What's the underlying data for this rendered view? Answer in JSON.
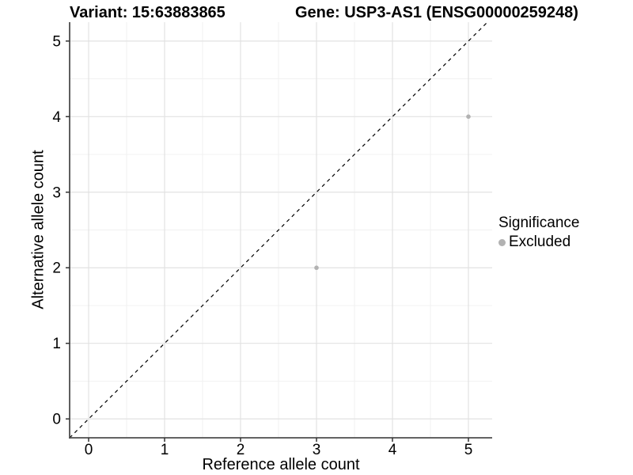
{
  "titles": {
    "left": "Variant: 15:63883865",
    "right": "Gene: USP3-AS1 (ENSG00000259248)"
  },
  "chart_data": {
    "type": "scatter",
    "title_left": "Variant: 15:63883865",
    "title_right": "Gene: USP3-AS1 (ENSG00000259248)",
    "xlabel": "Reference allele count",
    "ylabel": "Alternative allele count",
    "xticks": [
      0,
      1,
      2,
      3,
      4,
      5
    ],
    "yticks": [
      0,
      1,
      2,
      3,
      4,
      5
    ],
    "xlim": [
      -0.25,
      5.3125
    ],
    "ylim": [
      -0.25,
      5.25
    ],
    "grid": "major-and-minor",
    "minor_grid_step": 0.5,
    "identity_line": {
      "shown": true,
      "style": "dashed",
      "color": "#000000",
      "from": [
        -0.25,
        -0.25
      ],
      "to": [
        5.25,
        5.25
      ]
    },
    "series": [
      {
        "name": "Excluded",
        "color": "#b2b2b2",
        "points": [
          {
            "x": 3,
            "y": 2
          },
          {
            "x": 5,
            "y": 4
          }
        ]
      }
    ],
    "legend": {
      "position": "right",
      "title": "Significance",
      "items": [
        {
          "label": "Excluded",
          "color": "#b2b2b2"
        }
      ]
    }
  },
  "colors": {
    "background": "#ffffff",
    "axis_line": "#4d4d4d",
    "tick_mark": "#333333",
    "tick_label": "#000000",
    "grid_major": "#e2e2e2",
    "grid_minor": "#f0f0f0",
    "point": "#b2b2b2",
    "dashed_line": "#000000"
  }
}
